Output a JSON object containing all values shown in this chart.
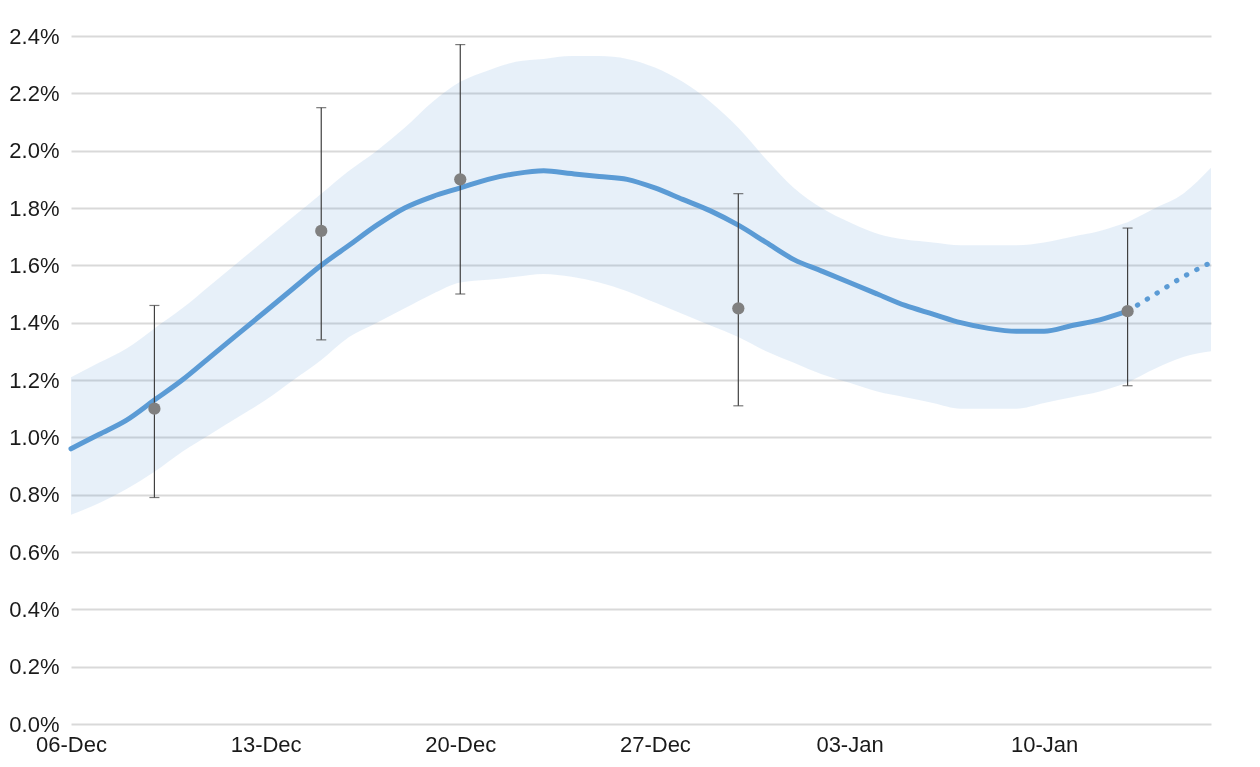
{
  "chart_data": {
    "type": "line",
    "categories": [
      "06-Dec",
      null,
      null,
      null,
      null,
      null,
      null,
      "13-Dec",
      null,
      null,
      null,
      null,
      null,
      null,
      "20-Dec",
      null,
      null,
      null,
      null,
      null,
      null,
      "27-Dec",
      null,
      null,
      null,
      null,
      null,
      null,
      "03-Jan",
      null,
      null,
      null,
      null,
      null,
      null,
      "10-Jan",
      null,
      null,
      null,
      null,
      null,
      null
    ],
    "ylim": [
      0,
      2.4
    ],
    "yticks": [
      {
        "value": 0,
        "label": "0.0%"
      },
      {
        "value": 0.2,
        "label": "0.2%"
      },
      {
        "value": 0.4,
        "label": "0.4%"
      },
      {
        "value": 0.6,
        "label": "0.6%"
      },
      {
        "value": 0.8,
        "label": "0.8%"
      },
      {
        "value": 1.0,
        "label": "1.0%"
      },
      {
        "value": 1.2,
        "label": "1.2%"
      },
      {
        "value": 1.4,
        "label": "1.4%"
      },
      {
        "value": 1.6,
        "label": "1.6%"
      },
      {
        "value": 1.8,
        "label": "1.8%"
      },
      {
        "value": 2.0,
        "label": "2.0%"
      },
      {
        "value": 2.2,
        "label": "2.2%"
      },
      {
        "value": 2.4,
        "label": "2.4%"
      }
    ],
    "grid": "y",
    "series": [
      {
        "color": "#5b9bd5",
        "line_style": "solid",
        "values": [
          0.96,
          1.01,
          1.06,
          1.13,
          1.2,
          1.28,
          1.36,
          1.44,
          1.52,
          1.6,
          1.67,
          1.74,
          1.8,
          1.84,
          1.87,
          1.9,
          1.92,
          1.93,
          1.92,
          1.91,
          1.9,
          1.87,
          1.83,
          1.79,
          1.74,
          1.68,
          1.62,
          1.58,
          1.54,
          1.5,
          1.46,
          1.43,
          1.4,
          1.38,
          1.37,
          1.37,
          1.39,
          1.41,
          1.44,
          null,
          null,
          null
        ],
        "lower": [
          0.73,
          0.77,
          0.82,
          0.88,
          0.95,
          1.01,
          1.07,
          1.13,
          1.2,
          1.27,
          1.35,
          1.4,
          1.45,
          1.5,
          1.54,
          1.55,
          1.56,
          1.57,
          1.56,
          1.54,
          1.51,
          1.47,
          1.43,
          1.39,
          1.35,
          1.3,
          1.26,
          1.22,
          1.19,
          1.16,
          1.14,
          1.12,
          1.1,
          1.1,
          1.1,
          1.12,
          1.14,
          1.16,
          1.19,
          null,
          null,
          null
        ],
        "upper": [
          1.21,
          1.26,
          1.31,
          1.38,
          1.45,
          1.53,
          1.61,
          1.69,
          1.77,
          1.85,
          1.93,
          2.0,
          2.08,
          2.17,
          2.24,
          2.28,
          2.31,
          2.32,
          2.33,
          2.33,
          2.32,
          2.29,
          2.24,
          2.17,
          2.08,
          1.97,
          1.87,
          1.8,
          1.75,
          1.71,
          1.69,
          1.68,
          1.67,
          1.67,
          1.67,
          1.68,
          1.7,
          1.72,
          1.75,
          null,
          null,
          null
        ]
      },
      {
        "color": "#5b9bd5",
        "line_style": "dotted",
        "values": [
          null,
          null,
          null,
          null,
          null,
          null,
          null,
          null,
          null,
          null,
          null,
          null,
          null,
          null,
          null,
          null,
          null,
          null,
          null,
          null,
          null,
          null,
          null,
          null,
          null,
          null,
          null,
          null,
          null,
          null,
          null,
          null,
          null,
          null,
          null,
          null,
          null,
          null,
          1.44,
          1.5,
          1.56,
          1.61
        ],
        "lower": [
          null,
          null,
          null,
          null,
          null,
          null,
          null,
          null,
          null,
          null,
          null,
          null,
          null,
          null,
          null,
          null,
          null,
          null,
          null,
          null,
          null,
          null,
          null,
          null,
          null,
          null,
          null,
          null,
          null,
          null,
          null,
          null,
          null,
          null,
          null,
          null,
          null,
          null,
          1.19,
          1.24,
          1.28,
          1.3
        ],
        "upper": [
          null,
          null,
          null,
          null,
          null,
          null,
          null,
          null,
          null,
          null,
          null,
          null,
          null,
          null,
          null,
          null,
          null,
          null,
          null,
          null,
          null,
          null,
          null,
          null,
          null,
          null,
          null,
          null,
          null,
          null,
          null,
          null,
          null,
          null,
          null,
          null,
          null,
          null,
          1.75,
          1.8,
          1.85,
          1.94
        ]
      },
      {
        "type": "scatter",
        "color": "#808080",
        "marker": "circle",
        "values": [
          null,
          null,
          null,
          1.1,
          null,
          null,
          null,
          null,
          null,
          1.72,
          null,
          null,
          null,
          null,
          1.9,
          null,
          null,
          null,
          null,
          null,
          null,
          null,
          null,
          null,
          1.45,
          null,
          null,
          null,
          null,
          null,
          null,
          null,
          null,
          null,
          null,
          null,
          null,
          null,
          1.44,
          null,
          null,
          null
        ],
        "errors": [
          null,
          null,
          null,
          [
            0.79,
            1.46
          ],
          null,
          null,
          null,
          null,
          null,
          [
            1.34,
            2.15
          ],
          null,
          null,
          null,
          null,
          [
            1.5,
            2.37
          ],
          null,
          null,
          null,
          null,
          null,
          null,
          null,
          null,
          null,
          [
            1.11,
            1.85
          ],
          null,
          null,
          null,
          null,
          null,
          null,
          null,
          null,
          null,
          null,
          null,
          null,
          null,
          [
            1.18,
            1.73
          ],
          null,
          null,
          null
        ]
      }
    ]
  }
}
